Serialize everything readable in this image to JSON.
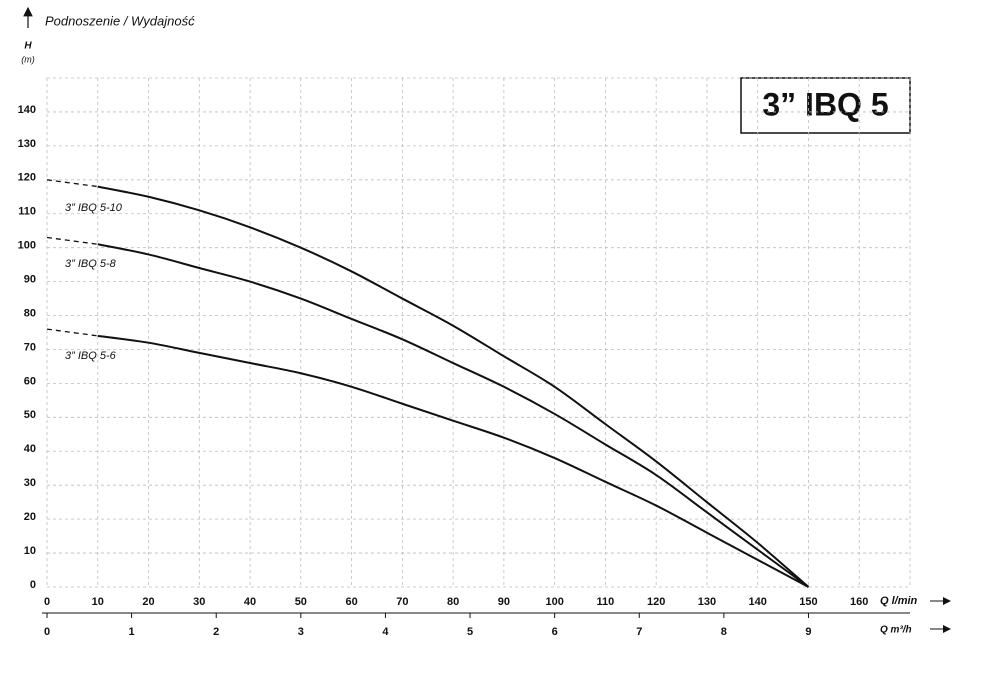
{
  "chart_data": {
    "type": "line",
    "title": "3” IBQ 5",
    "subtitle": "Podnoszenie / Wydajność",
    "y_label": "H",
    "y_unit": "(m)",
    "x_label": "Q l/min",
    "x2_label": "Q m³/h",
    "x": [
      0,
      10,
      20,
      30,
      40,
      50,
      60,
      70,
      80,
      90,
      100,
      110,
      120,
      130,
      140,
      150
    ],
    "xlim": [
      0,
      170
    ],
    "xticks": [
      0,
      10,
      20,
      30,
      40,
      50,
      60,
      70,
      80,
      90,
      100,
      110,
      120,
      130,
      140,
      150,
      160
    ],
    "x2lim": [
      0,
      10.2
    ],
    "x2ticks": [
      0,
      1,
      2,
      3,
      4,
      5,
      6,
      7,
      8,
      9
    ],
    "ylim": [
      0,
      150
    ],
    "yticks": [
      0,
      10,
      20,
      30,
      40,
      50,
      60,
      70,
      80,
      90,
      100,
      110,
      120,
      130,
      140
    ],
    "grid": true,
    "series": [
      {
        "name": "3” IBQ 5-10",
        "color": "#111111",
        "values": [
          120,
          118,
          115,
          111,
          106,
          100,
          93,
          85,
          77,
          68,
          59,
          48,
          37,
          25,
          13,
          0
        ]
      },
      {
        "name": "3” IBQ 5-8",
        "color": "#111111",
        "values": [
          103,
          101,
          98,
          94,
          90,
          85,
          79,
          73,
          66,
          59,
          51,
          42,
          33,
          22,
          11,
          0
        ]
      },
      {
        "name": "3” IBQ 5-6",
        "color": "#111111",
        "values": [
          76,
          74,
          72,
          69,
          66,
          63,
          59,
          54,
          49,
          44,
          38,
          31,
          24,
          16,
          8,
          0
        ]
      }
    ]
  }
}
